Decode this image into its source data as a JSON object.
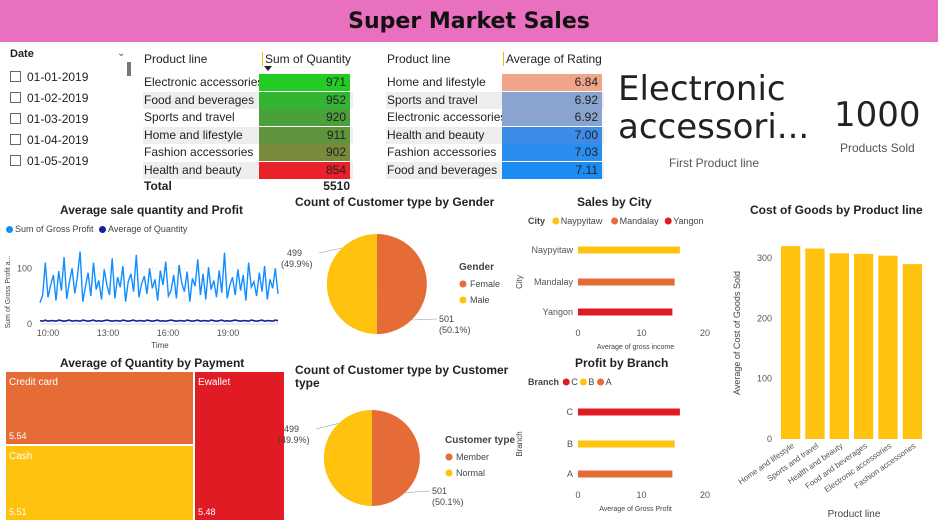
{
  "page": {
    "title": "Super Market Sales"
  },
  "slicer": {
    "header": "Date",
    "items": [
      "01-01-2019",
      "01-02-2019",
      "01-03-2019",
      "01-04-2019",
      "01-05-2019"
    ]
  },
  "qty_table": {
    "col1": "Product line",
    "col2": "Sum of Quantity",
    "rows": [
      {
        "label": "Electronic accessories",
        "value": "971",
        "color": "#22cc22"
      },
      {
        "label": "Food and beverages",
        "value": "952",
        "color": "#33b533"
      },
      {
        "label": "Sports and travel",
        "value": "920",
        "color": "#4aa13a"
      },
      {
        "label": "Home and lifestyle",
        "value": "911",
        "color": "#5f943c"
      },
      {
        "label": "Fashion accessories",
        "value": "902",
        "color": "#7a8a3c"
      },
      {
        "label": "Health and beauty",
        "value": "854",
        "color": "#e8212a"
      }
    ],
    "total_label": "Total",
    "total_value": "5510"
  },
  "rating_table": {
    "col1": "Product line",
    "col2": "Average of Rating",
    "rows": [
      {
        "label": "Home and lifestyle",
        "value": "6.84",
        "color": "#f0a58a"
      },
      {
        "label": "Sports and travel",
        "value": "6.92",
        "color": "#8aa4d0"
      },
      {
        "label": "Electronic accessories",
        "value": "6.92",
        "color": "#8aa4d0"
      },
      {
        "label": "Health and beauty",
        "value": "7.00",
        "color": "#3d8de8"
      },
      {
        "label": "Fashion accessories",
        "value": "7.03",
        "color": "#2a8ef0"
      },
      {
        "label": "Food and beverages",
        "value": "7.11",
        "color": "#1b8cf2"
      }
    ]
  },
  "card_product": {
    "value": "Electronic accessori...",
    "label": "First Product line"
  },
  "card_sold": {
    "value": "1000",
    "label": "Products Sold"
  },
  "chart_data": [
    {
      "type": "line",
      "title": "Average sale quantity and Profit",
      "xlabel": "Time",
      "ylabel": "Sum of Gross Profit a...",
      "series_names": [
        "Sum of Gross Profit",
        "Average of Quantity"
      ],
      "series_colors": [
        "#118dff",
        "#12239e"
      ],
      "x_ticks": [
        "10:00",
        "13:00",
        "16:00",
        "19:00"
      ],
      "y_ticks": [
        "0",
        "100"
      ],
      "ylim": [
        0,
        140
      ],
      "profit_values": [
        38,
        52,
        110,
        48,
        70,
        88,
        42,
        95,
        60,
        120,
        45,
        75,
        100,
        55,
        85,
        130,
        40,
        68,
        92,
        50,
        110,
        62,
        78,
        44,
        98,
        70,
        52,
        118,
        46,
        84,
        66,
        104,
        40,
        76,
        90,
        58,
        124,
        48,
        72,
        86,
        54,
        100,
        64,
        80,
        42,
        96,
        70,
        112,
        50,
        60,
        88,
        46,
        106,
        74,
        58,
        94,
        40,
        82,
        68,
        116,
        52,
        90,
        44,
        102,
        62,
        78,
        48,
        96,
        56,
        128,
        46,
        70,
        84,
        52,
        98,
        60,
        88,
        42,
        110,
        66,
        76,
        50,
        92,
        58,
        104,
        44,
        80,
        64,
        100,
        54
      ],
      "qty_values": [
        6,
        5,
        7,
        5,
        6,
        6,
        5,
        7,
        6,
        5,
        6,
        7,
        5,
        6,
        6,
        5,
        7,
        6,
        5,
        6,
        7,
        5,
        6,
        5,
        6,
        7,
        6,
        5,
        6,
        6,
        5,
        7,
        6,
        5,
        6,
        7,
        5,
        6,
        6,
        5,
        7,
        6,
        5,
        6,
        7,
        5,
        6,
        5,
        6,
        7,
        6,
        5,
        6,
        6,
        5,
        7,
        6,
        5,
        6,
        7,
        5,
        6,
        6,
        5,
        7,
        6,
        5,
        6,
        7,
        5,
        6,
        5,
        6,
        7,
        6,
        5,
        6,
        6,
        5,
        7,
        6,
        5,
        6,
        7,
        5,
        6,
        6,
        5,
        7,
        6
      ]
    },
    {
      "type": "pie",
      "title": "Count of Customer type by Gender",
      "legend_title": "Gender",
      "labels": [
        "Female",
        "Male"
      ],
      "values": [
        501,
        499
      ],
      "percents": [
        "50.1%",
        "49.9%"
      ],
      "colors": [
        "#e66c37",
        "#ffc20e"
      ]
    },
    {
      "type": "bar",
      "title": "Sales by City",
      "legend_title": "City",
      "categories": [
        "Naypyitaw",
        "Mandalay",
        "Yangon"
      ],
      "values": [
        16.05,
        15.23,
        14.87
      ],
      "colors": [
        "#ffc20e",
        "#e66c37",
        "#e01b24"
      ],
      "xlabel": "Average of gross income",
      "ylabel": "City",
      "x_ticks": [
        0,
        10,
        20
      ],
      "xlim": [
        0,
        20
      ]
    },
    {
      "type": "bar",
      "title": "Cost of Goods by Product line",
      "categories": [
        "Home and lifestyle",
        "Sports and travel",
        "Health and beauty",
        "Food and beverages",
        "Electronic accessories",
        "Fashion accessories"
      ],
      "values": [
        320,
        316,
        308,
        307,
        304,
        290
      ],
      "color": "#ffc20e",
      "xlabel": "Product line",
      "ylabel": "Average of Cost of Goods Sold",
      "y_ticks": [
        0,
        100,
        200,
        300
      ],
      "ylim": [
        0,
        340
      ]
    },
    {
      "type": "treemap",
      "title": "Average of Quantity by Payment",
      "items": [
        {
          "label": "Credit card",
          "value": "5.54",
          "color": "#e66c37"
        },
        {
          "label": "Cash",
          "value": "5.51",
          "color": "#ffc20e"
        },
        {
          "label": "Ewallet",
          "value": "5.48",
          "color": "#e01b24"
        }
      ]
    },
    {
      "type": "pie",
      "title": "Count of Customer type by Customer type",
      "legend_title": "Customer type",
      "labels": [
        "Member",
        "Normal"
      ],
      "values": [
        501,
        499
      ],
      "percents": [
        "50.1%",
        "49.9%"
      ],
      "colors": [
        "#e66c37",
        "#ffc20e"
      ]
    },
    {
      "type": "bar",
      "title": "Profit by Branch",
      "legend_title": "Branch",
      "legend_labels": [
        "C",
        "B",
        "A"
      ],
      "categories": [
        "C",
        "B",
        "A"
      ],
      "values": [
        16.05,
        15.23,
        14.87
      ],
      "colors": [
        "#e01b24",
        "#ffc20e",
        "#e66c37"
      ],
      "xlabel": "Average of Gross Profit",
      "ylabel": "Branch",
      "x_ticks": [
        0,
        10,
        20
      ],
      "xlim": [
        0,
        20
      ]
    }
  ]
}
